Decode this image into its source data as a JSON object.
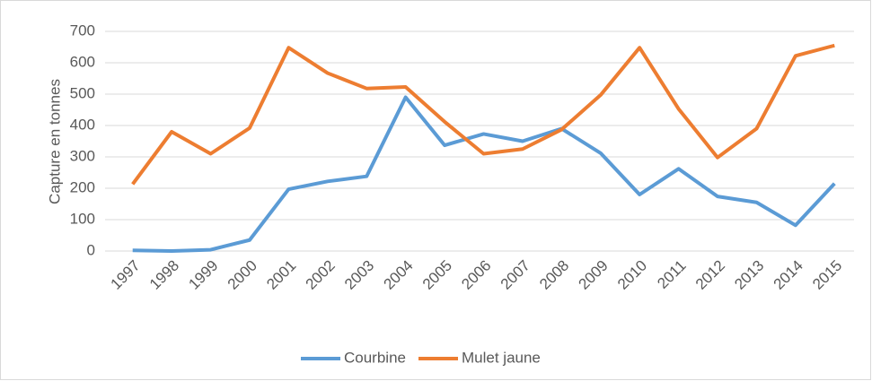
{
  "chart_data": {
    "type": "line",
    "y_label": "Capture en tonnes",
    "categories": [
      "1997",
      "1998",
      "1999",
      "2000",
      "2001",
      "2002",
      "2003",
      "2004",
      "2005",
      "2006",
      "2007",
      "2008",
      "2009",
      "2010",
      "2011",
      "2012",
      "2013",
      "2014",
      "2015"
    ],
    "series": [
      {
        "name": "Courbine",
        "color": "#5b9bd5",
        "values": [
          2,
          0,
          4,
          35,
          197,
          222,
          238,
          490,
          337,
          373,
          350,
          390,
          312,
          180,
          262,
          174,
          155,
          82,
          215
        ]
      },
      {
        "name": "Mulet jaune",
        "color": "#ed7d31",
        "values": [
          213,
          380,
          310,
          392,
          648,
          567,
          518,
          523,
          412,
          310,
          325,
          387,
          497,
          648,
          453,
          298,
          390,
          622,
          655
        ]
      }
    ],
    "ylim": [
      0,
      700
    ],
    "yticks": [
      0,
      100,
      200,
      300,
      400,
      500,
      600,
      700
    ],
    "grid": true,
    "legend": "bottom"
  }
}
